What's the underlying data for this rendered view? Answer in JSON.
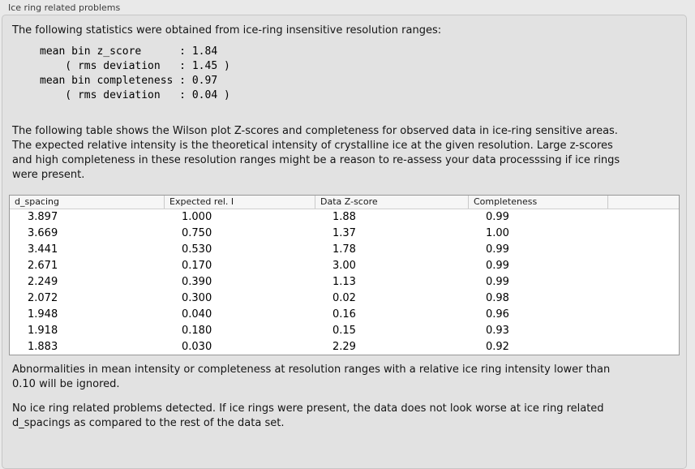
{
  "panel": {
    "title": "Ice ring related problems",
    "intro": "The following statistics were obtained from ice-ring insensitive resolution ranges:",
    "stats_block": "mean bin z_score      : 1.84\n    ( rms deviation   : 1.45 )\nmean bin completeness : 0.97\n    ( rms deviation   : 0.04 )",
    "stats": {
      "mean_bin_z_score": "1.84",
      "z_score_rms_deviation": "1.45",
      "mean_bin_completeness": "0.97",
      "completeness_rms_deviation": "0.04"
    },
    "description": "The following table shows the Wilson plot Z-scores and completeness for observed data in ice-ring sensitive areas.\nThe expected relative intensity is the theoretical intensity of crystalline ice at the given resolution. Large z-scores\nand high completeness in these resolution ranges might be a reason to re-assess your data processsing if ice rings\nwere present.",
    "note": "Abnormalities in mean intensity or completeness at resolution ranges with a relative ice ring intensity lower than\n0.10 will be ignored.",
    "conclusion": "No ice ring related problems detected. If ice rings were present, the data does not look worse at ice ring related\nd_spacings as compared to the rest of the data set."
  },
  "table": {
    "columns": [
      "d_spacing",
      "Expected rel. I",
      "Data Z-score",
      "Completeness"
    ],
    "rows": [
      [
        "3.897",
        "1.000",
        "1.88",
        "0.99"
      ],
      [
        "3.669",
        "0.750",
        "1.37",
        "1.00"
      ],
      [
        "3.441",
        "0.530",
        "1.78",
        "0.99"
      ],
      [
        "2.671",
        "0.170",
        "3.00",
        "0.99"
      ],
      [
        "2.249",
        "0.390",
        "1.13",
        "0.99"
      ],
      [
        "2.072",
        "0.300",
        "0.02",
        "0.98"
      ],
      [
        "1.948",
        "0.040",
        "0.16",
        "0.96"
      ],
      [
        "1.918",
        "0.180",
        "0.15",
        "0.93"
      ],
      [
        "1.883",
        "0.030",
        "2.29",
        "0.92"
      ]
    ]
  },
  "colors": {
    "page_background": "#e9e9e9",
    "groupbox_background": "#e2e2e2",
    "groupbox_border": "#c6c6c6",
    "table_background": "#ffffff",
    "table_border": "#979797",
    "table_header_background": "#f6f6f6",
    "text": "#141414"
  }
}
